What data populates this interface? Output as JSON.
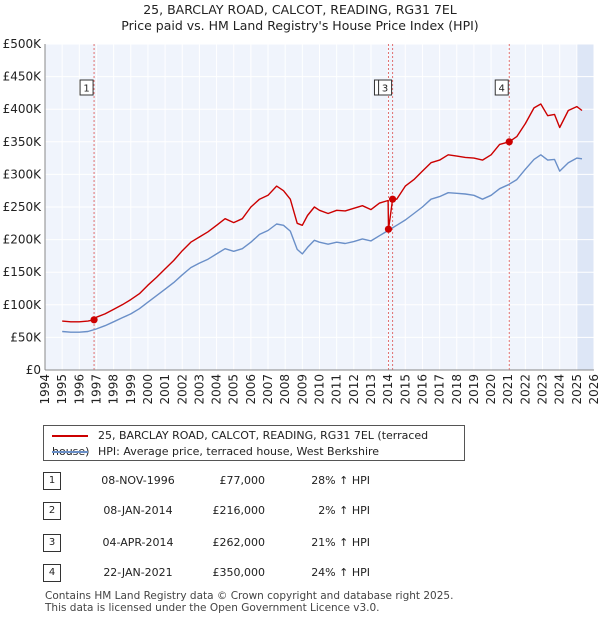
{
  "title_line1": "25, BARCLAY ROAD, CALCOT, READING, RG31 7EL",
  "title_line2": "Price paid vs. HM Land Registry's House Price Index (HPI)",
  "colors": {
    "price_line": "#cc0000",
    "hpi_line": "#6a8fc8",
    "plot_bg": "#f0f4fc",
    "shade": "#dde6f6",
    "marker_line": "#e07070"
  },
  "chart_data": {
    "type": "line",
    "title": "25, BARCLAY ROAD, CALCOT, READING, RG31 7EL — Price paid vs. HM Land Registry's House Price Index (HPI)",
    "xlabel": "",
    "ylabel": "",
    "xlim": [
      1994,
      2026
    ],
    "ylim": [
      0,
      500000
    ],
    "y_ticks": [
      0,
      50000,
      100000,
      150000,
      200000,
      250000,
      300000,
      350000,
      400000,
      450000,
      500000
    ],
    "y_tick_labels": [
      "£0",
      "£50K",
      "£100K",
      "£150K",
      "£200K",
      "£250K",
      "£300K",
      "£350K",
      "£400K",
      "£450K",
      "£500K"
    ],
    "x_ticks": [
      1994,
      1995,
      1996,
      1997,
      1998,
      1999,
      2000,
      2001,
      2002,
      2003,
      2004,
      2005,
      2006,
      2007,
      2008,
      2009,
      2010,
      2011,
      2012,
      2013,
      2014,
      2015,
      2016,
      2017,
      2018,
      2019,
      2020,
      2021,
      2022,
      2023,
      2024,
      2025,
      2026
    ],
    "x_tick_labels": [
      "1994",
      "1995",
      "1996",
      "1997",
      "1998",
      "1999",
      "2000",
      "2001",
      "2002",
      "2003",
      "2004",
      "2005",
      "2006",
      "2007",
      "2008",
      "2009",
      "2010",
      "2011",
      "2012",
      "2013",
      "2014",
      "2015",
      "2016",
      "2017",
      "2018",
      "2019",
      "2020",
      "2021",
      "2022",
      "2023",
      "2024",
      "2025",
      "2026"
    ],
    "series": [
      {
        "name": "25, BARCLAY ROAD, CALCOT, READING, RG31 7EL (terraced house)",
        "x": [
          1995.0,
          1995.5,
          1996.0,
          1996.5,
          1996.86,
          1997.0,
          1997.5,
          1998.0,
          1998.5,
          1999.0,
          1999.5,
          2000.0,
          2000.5,
          2001.0,
          2001.5,
          2002.0,
          2002.5,
          2003.0,
          2003.5,
          2004.0,
          2004.5,
          2005.0,
          2005.5,
          2006.0,
          2006.5,
          2007.0,
          2007.5,
          2007.9,
          2008.3,
          2008.7,
          2009.0,
          2009.3,
          2009.7,
          2010.0,
          2010.5,
          2011.0,
          2011.5,
          2012.0,
          2012.5,
          2013.0,
          2013.5,
          2014.0,
          2014.02,
          2014.1,
          2014.26,
          2014.5,
          2015.0,
          2015.5,
          2016.0,
          2016.5,
          2017.0,
          2017.5,
          2018.0,
          2018.5,
          2019.0,
          2019.5,
          2020.0,
          2020.5,
          2021.06,
          2021.5,
          2022.0,
          2022.5,
          2022.9,
          2023.3,
          2023.7,
          2024.0,
          2024.5,
          2025.0,
          2025.3
        ],
        "values": [
          75000,
          74000,
          74000,
          75000,
          77000,
          81000,
          86000,
          93000,
          100000,
          108000,
          117000,
          130000,
          142000,
          155000,
          168000,
          183000,
          196000,
          204000,
          212000,
          222000,
          232000,
          226000,
          232000,
          250000,
          262000,
          268000,
          282000,
          275000,
          262000,
          225000,
          222000,
          237000,
          250000,
          245000,
          240000,
          245000,
          244000,
          248000,
          252000,
          246000,
          256000,
          260000,
          216000,
          230000,
          262000,
          262000,
          282000,
          292000,
          305000,
          318000,
          322000,
          330000,
          328000,
          326000,
          325000,
          322000,
          330000,
          346000,
          350000,
          358000,
          378000,
          402000,
          408000,
          390000,
          392000,
          372000,
          398000,
          404000,
          398000
        ]
      },
      {
        "name": "HPI: Average price, terraced house, West Berkshire",
        "x": [
          1995.0,
          1995.5,
          1996.0,
          1996.5,
          1997.0,
          1997.5,
          1998.0,
          1998.5,
          1999.0,
          1999.5,
          2000.0,
          2000.5,
          2001.0,
          2001.5,
          2002.0,
          2002.5,
          2003.0,
          2003.5,
          2004.0,
          2004.5,
          2005.0,
          2005.5,
          2006.0,
          2006.5,
          2007.0,
          2007.5,
          2007.9,
          2008.3,
          2008.7,
          2009.0,
          2009.3,
          2009.7,
          2010.0,
          2010.5,
          2011.0,
          2011.5,
          2012.0,
          2012.5,
          2013.0,
          2013.5,
          2014.0,
          2014.5,
          2015.0,
          2015.5,
          2016.0,
          2016.5,
          2017.0,
          2017.5,
          2018.0,
          2018.5,
          2019.0,
          2019.5,
          2020.0,
          2020.5,
          2021.0,
          2021.5,
          2022.0,
          2022.5,
          2022.9,
          2023.3,
          2023.7,
          2024.0,
          2024.5,
          2025.0,
          2025.3
        ],
        "values": [
          59000,
          58000,
          58000,
          59000,
          63000,
          68000,
          74000,
          80000,
          86000,
          94000,
          104000,
          114000,
          124000,
          134000,
          146000,
          157000,
          164000,
          170000,
          178000,
          186000,
          182000,
          186000,
          196000,
          208000,
          214000,
          224000,
          222000,
          213000,
          185000,
          178000,
          188000,
          199000,
          196000,
          193000,
          196000,
          194000,
          197000,
          201000,
          198000,
          206000,
          214000,
          222000,
          230000,
          240000,
          250000,
          262000,
          266000,
          272000,
          271000,
          270000,
          268000,
          262000,
          268000,
          278000,
          284000,
          292000,
          308000,
          323000,
          330000,
          322000,
          323000,
          305000,
          318000,
          325000,
          324000
        ]
      }
    ],
    "transactions": [
      {
        "label": "1",
        "date": "08-NOV-1996",
        "x": 1996.86,
        "price": 77000
      },
      {
        "label": "2",
        "date": "08-JAN-2014",
        "x": 2014.02,
        "price": 216000
      },
      {
        "label": "3",
        "date": "04-APR-2014",
        "x": 2014.26,
        "price": 262000
      },
      {
        "label": "4",
        "date": "22-JAN-2021",
        "x": 2021.06,
        "price": 350000
      }
    ],
    "legend_position": "below"
  },
  "legend": {
    "price_label": "25, BARCLAY ROAD, CALCOT, READING, RG31 7EL (terraced house)",
    "hpi_label": "HPI: Average price, terraced house, West Berkshire"
  },
  "table": [
    {
      "num": "1",
      "date": "08-NOV-1996",
      "price": "£77,000",
      "hpi": "28% ↑ HPI"
    },
    {
      "num": "2",
      "date": "08-JAN-2014",
      "price": "£216,000",
      "hpi": "2% ↑ HPI"
    },
    {
      "num": "3",
      "date": "04-APR-2014",
      "price": "£262,000",
      "hpi": "21% ↑ HPI"
    },
    {
      "num": "4",
      "date": "22-JAN-2021",
      "price": "£350,000",
      "hpi": "24% ↑ HPI"
    }
  ],
  "footer": {
    "line1": "Contains HM Land Registry data © Crown copyright and database right 2025.",
    "line2": "This data is licensed under the Open Government Licence v3.0."
  }
}
